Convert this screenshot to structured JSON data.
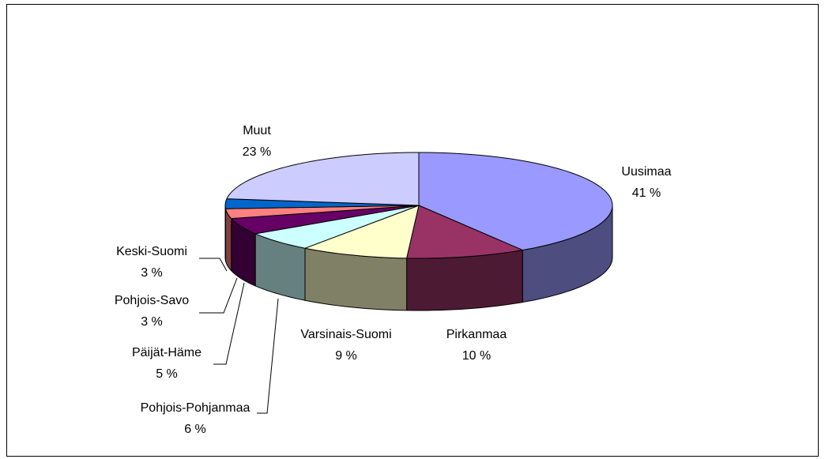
{
  "chart_data": {
    "type": "pie3d",
    "categories": [
      "Uusimaa",
      "Pirkanmaa",
      "Varsinais-Suomi",
      "Pohjois-Pohjanmaa",
      "Päijät-Häme",
      "Pohjois-Savo",
      "Keski-Suomi",
      "Muut"
    ],
    "values": [
      41,
      10,
      9,
      6,
      5,
      3,
      3,
      23
    ],
    "value_labels": [
      "41 %",
      "10 %",
      "9 %",
      "6 %",
      "5 %",
      "3 %",
      "3 %",
      "23 %"
    ],
    "colors": [
      "#9999ff",
      "#993366",
      "#ffffcc",
      "#ccffff",
      "#660066",
      "#ff8080",
      "#0066cc",
      "#ccccff"
    ]
  }
}
